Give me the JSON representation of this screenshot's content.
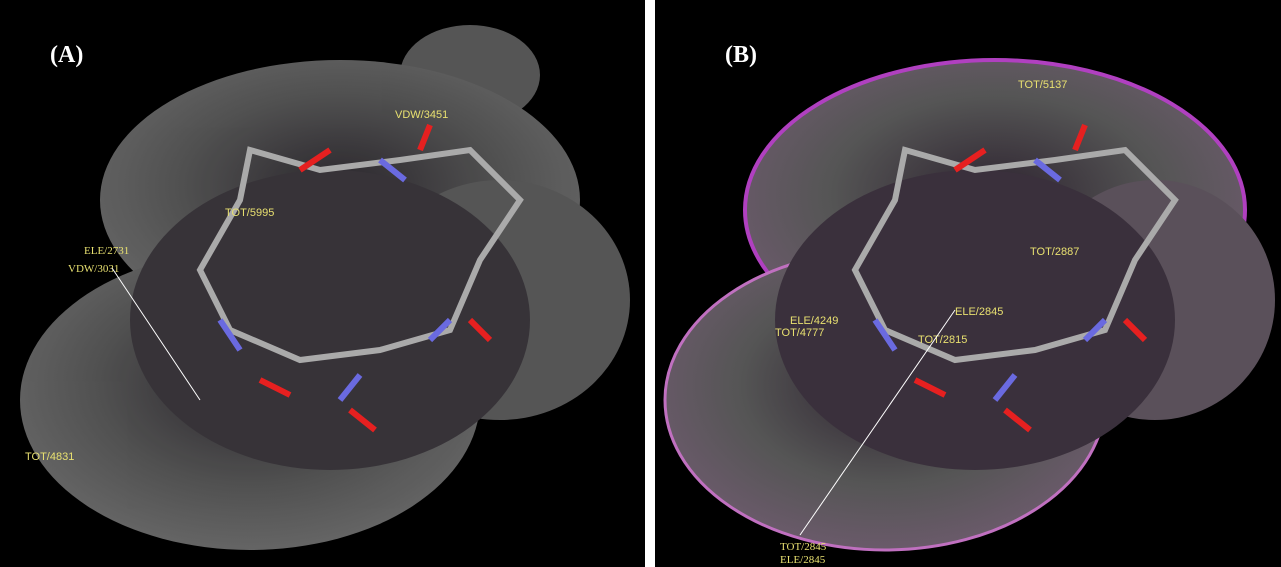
{
  "panels": [
    {
      "label": "(A)",
      "annotations": [
        "ELE/2731",
        "VDW/3031",
        "TOT/5995",
        "VDW/3451",
        "TOT/4831"
      ]
    },
    {
      "label": "(B)",
      "annotations": [
        "TOT/5137",
        "TOT/2887",
        "ELE/2845",
        "ELE/4249",
        "TOT/4777",
        "TOT/2815",
        "TOT/2845",
        "ELE/2845"
      ]
    }
  ]
}
